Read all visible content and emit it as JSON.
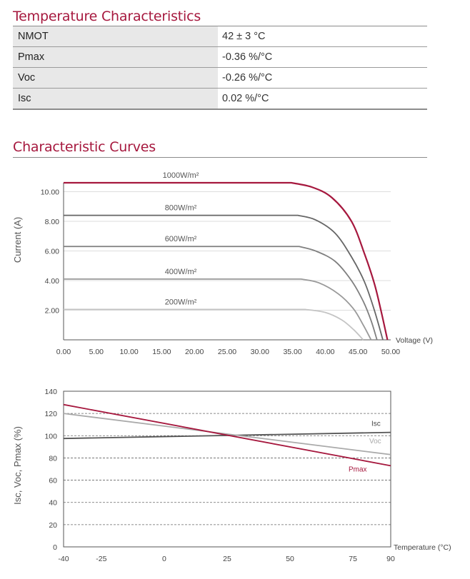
{
  "temperature_characteristics": {
    "title": "Temperature Characteristics",
    "rows": [
      {
        "label": "NMOT",
        "value": "42 ± 3 °C"
      },
      {
        "label": "Pmax",
        "value": "-0.36 %/°C"
      },
      {
        "label": "Voc",
        "value": "-0.26 %/°C"
      },
      {
        "label": "Isc",
        "value": "0.02 %/°C"
      }
    ]
  },
  "characteristic_curves": {
    "title": "Characteristic Curves"
  },
  "chart_data": [
    {
      "type": "line",
      "title": "",
      "xlabel": "Voltage (V)",
      "ylabel": "Current (A)",
      "xlim": [
        0,
        50
      ],
      "ylim": [
        0,
        10.6
      ],
      "x_ticks": [
        "0.00",
        "5.00",
        "10.00",
        "15.00",
        "20.00",
        "25.00",
        "30.00",
        "35.00",
        "40.00",
        "45.00",
        "50.00"
      ],
      "y_ticks": [
        "2.00",
        "4.00",
        "6.00",
        "8.00",
        "10.00"
      ],
      "grid": true,
      "series": [
        {
          "name": "1000W/m²",
          "isc": 10.6,
          "knee_v": 34.8,
          "voc": 49.5,
          "color": "#a6183e",
          "points": [
            [
              0,
              10.6
            ],
            [
              34.8,
              10.6
            ],
            [
              38,
              10.3
            ],
            [
              41,
              9.6
            ],
            [
              44,
              8.0
            ],
            [
              46,
              5.8
            ],
            [
              47.5,
              3.8
            ],
            [
              48.5,
              2.0
            ],
            [
              49.5,
              0
            ]
          ]
        },
        {
          "name": "800W/m²",
          "isc": 8.4,
          "knee_v": 35.8,
          "voc": 48.8,
          "color": "#666666",
          "points": [
            [
              0,
              8.4
            ],
            [
              35.8,
              8.4
            ],
            [
              38.5,
              8.1
            ],
            [
              41.5,
              7.2
            ],
            [
              44,
              5.6
            ],
            [
              46,
              3.9
            ],
            [
              47.5,
              2.0
            ],
            [
              48.8,
              0
            ]
          ]
        },
        {
          "name": "600W/m²",
          "isc": 6.3,
          "knee_v": 36.0,
          "voc": 47.9,
          "color": "#7f7f7f",
          "points": [
            [
              0,
              6.3
            ],
            [
              36,
              6.3
            ],
            [
              38.5,
              6.0
            ],
            [
              41.5,
              5.3
            ],
            [
              44,
              4.0
            ],
            [
              45.8,
              2.6
            ],
            [
              47,
              1.3
            ],
            [
              47.9,
              0
            ]
          ]
        },
        {
          "name": "400W/m²",
          "isc": 4.1,
          "knee_v": 36.3,
          "voc": 47.0,
          "color": "#999999",
          "points": [
            [
              0,
              4.1
            ],
            [
              36.3,
              4.1
            ],
            [
              39,
              3.85
            ],
            [
              42,
              3.1
            ],
            [
              44.3,
              2.1
            ],
            [
              45.8,
              1.0
            ],
            [
              47,
              0
            ]
          ]
        },
        {
          "name": "200W/m²",
          "isc": 2.05,
          "knee_v": 37.0,
          "voc": 45.8,
          "color": "#c4c4c4",
          "points": [
            [
              0,
              2.05
            ],
            [
              37,
              2.05
            ],
            [
              40,
              1.85
            ],
            [
              42.5,
              1.35
            ],
            [
              44.3,
              0.7
            ],
            [
              45.8,
              0
            ]
          ]
        }
      ]
    },
    {
      "type": "line",
      "title": "",
      "xlabel": "Temperature (°C)",
      "ylabel": "Isc, Voc, Pmax (%)",
      "xlim": [
        -40,
        90
      ],
      "ylim": [
        0,
        140
      ],
      "x_ticks": [
        "-40",
        "-25",
        "0",
        "25",
        "50",
        "75",
        "90"
      ],
      "y_ticks": [
        "0",
        "20",
        "40",
        "60",
        "80",
        "100",
        "120",
        "140"
      ],
      "grid": true,
      "series": [
        {
          "name": "Isc",
          "x": [
            -40,
            90
          ],
          "y": [
            97.5,
            103
          ],
          "color": "#555555"
        },
        {
          "name": "Voc",
          "x": [
            -40,
            90
          ],
          "y": [
            120,
            83
          ],
          "color": "#aaaaaa"
        },
        {
          "name": "Pmax",
          "x": [
            -40,
            90
          ],
          "y": [
            128,
            73
          ],
          "color": "#a6183e"
        }
      ]
    }
  ]
}
